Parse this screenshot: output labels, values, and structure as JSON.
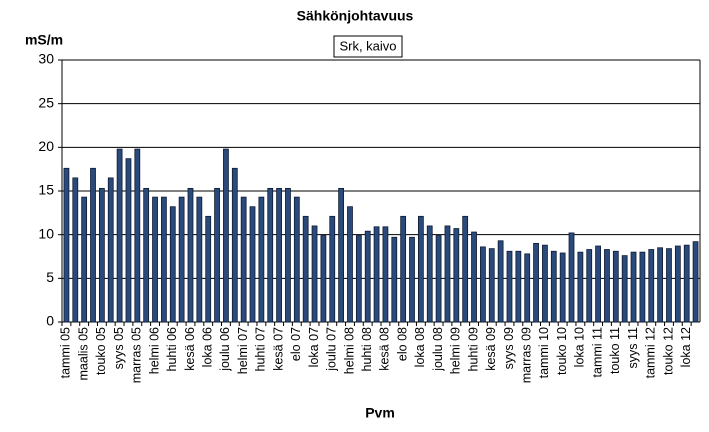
{
  "chart_data": {
    "type": "bar",
    "title": "Sähkönjohtavuus",
    "subtitle": "Srk, kaivo",
    "y_label": "mS/m",
    "x_label": "Pvm",
    "categories": [
      "tammi 05",
      null,
      "maalis 05",
      null,
      "touko 05",
      null,
      "syys 05",
      null,
      "marras 05",
      null,
      "helmi 06",
      null,
      "huhti 06",
      null,
      "kesä 06",
      null,
      "loka 06",
      null,
      "joulu 06",
      null,
      "helmi 07",
      null,
      "huhti 07",
      null,
      "kesä 07",
      null,
      "elo 07",
      null,
      "loka 07",
      null,
      "joulu 07",
      null,
      "helmi 08",
      null,
      "huhti 08",
      null,
      "kesä 08",
      null,
      "elo 08",
      null,
      "loka 08",
      null,
      "joulu 08",
      null,
      "helmi 09",
      null,
      "huhti 09",
      null,
      "kesä 09",
      null,
      "syys 09",
      null,
      "marras 09",
      null,
      "tammi 10",
      null,
      "touko 10",
      null,
      "loka 10",
      null,
      "tammi 11",
      null,
      "touko 11",
      null,
      "syys 11",
      null,
      "tammi 12",
      null,
      "touko 12",
      null,
      "loka 12",
      null
    ],
    "values": [
      17.6,
      16.5,
      14.3,
      17.6,
      15.3,
      16.5,
      19.8,
      18.7,
      19.8,
      15.3,
      14.3,
      14.3,
      13.2,
      14.3,
      15.3,
      14.3,
      12.1,
      15.3,
      19.8,
      17.6,
      14.3,
      13.2,
      14.3,
      15.3,
      15.3,
      15.3,
      14.3,
      12.1,
      11.0,
      9.9,
      12.1,
      15.3,
      13.2,
      9.9,
      10.4,
      10.9,
      10.9,
      9.7,
      12.1,
      9.7,
      12.1,
      11.0,
      9.9,
      11.0,
      10.7,
      12.1,
      10.3,
      8.6,
      8.4,
      9.3,
      8.1,
      8.1,
      7.8,
      9.0,
      8.8,
      8.1,
      7.9,
      10.2,
      8.0,
      8.3,
      8.7,
      8.3,
      8.1,
      7.6,
      8.0,
      8.0,
      8.3,
      8.5,
      8.4,
      8.7,
      8.8,
      9.2
    ],
    "color": "#2b4a7c",
    "ylim": [
      0,
      30
    ],
    "yticks": [
      0,
      5,
      10,
      15,
      20,
      25,
      30
    ],
    "grid": true
  }
}
